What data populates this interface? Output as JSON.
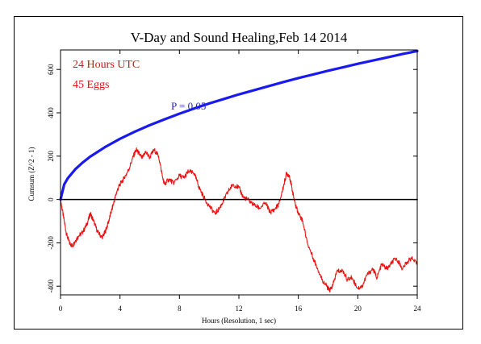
{
  "chart_data": {
    "type": "line",
    "title": "V-Day and Sound Healing,Feb 14 2014",
    "xlabel": "Hours (Resolution, 1 sec)",
    "ylabel": "Cumsum (Z^2 - 1)",
    "annotations": [
      {
        "text": "24 Hours UTC",
        "color": "#dd1111"
      },
      {
        "text": "45 Eggs",
        "color": "#dd1111"
      },
      {
        "text": "P = 0.05",
        "color": "#2222cc"
      }
    ],
    "xlim": [
      0,
      24
    ],
    "ylim": [
      -440,
      690
    ],
    "x_ticks": [
      0,
      4,
      8,
      12,
      16,
      20,
      24
    ],
    "x_tick_labels": [
      "0",
      "4",
      "8",
      "12",
      "16",
      "20",
      "24"
    ],
    "y_ticks": [
      -400,
      -200,
      0,
      200,
      400,
      600
    ],
    "y_tick_labels": [
      "-400",
      "-200",
      "0",
      "200",
      "400",
      "600"
    ],
    "grid": false,
    "series": [
      {
        "role": "probability-envelope",
        "color": "#1a1aee",
        "x": [
          0,
          0.25,
          0.5,
          1,
          1.5,
          2,
          3,
          4,
          5,
          6,
          7,
          8,
          9,
          10,
          11,
          12,
          13,
          14,
          15,
          16,
          17,
          18,
          19,
          20,
          21,
          22,
          23,
          24
        ],
        "values": [
          0,
          70,
          99,
          140,
          171,
          198,
          242,
          280,
          313,
          343,
          370,
          396,
          420,
          443,
          464,
          485,
          504,
          523,
          542,
          560,
          577,
          594,
          610,
          626,
          641,
          656,
          671,
          685
        ]
      },
      {
        "role": "cumulative-deviation",
        "color": "#ee1111",
        "x": [
          0,
          0.2,
          0.4,
          0.6,
          0.8,
          1.0,
          1.2,
          1.5,
          1.8,
          2.0,
          2.2,
          2.5,
          2.8,
          3.0,
          3.2,
          3.4,
          3.6,
          3.8,
          4.0,
          4.3,
          4.6,
          4.9,
          5.1,
          5.3,
          5.5,
          5.7,
          6.0,
          6.3,
          6.6,
          6.9,
          7.0,
          7.3,
          7.6,
          8.0,
          8.3,
          8.6,
          9.0,
          9.3,
          9.6,
          10.0,
          10.4,
          10.7,
          11.0,
          11.3,
          11.6,
          12.0,
          12.3,
          12.6,
          13.0,
          13.4,
          13.8,
          14.1,
          14.4,
          14.7,
          15.0,
          15.2,
          15.4,
          15.6,
          15.8,
          16.0,
          16.3,
          16.6,
          17.0,
          17.3,
          17.6,
          17.9,
          18.1,
          18.3,
          18.6,
          19.0,
          19.3,
          19.6,
          20.0,
          20.3,
          20.6,
          21.0,
          21.3,
          21.6,
          22.0,
          22.3,
          22.6,
          23.0,
          23.3,
          23.6,
          24.0
        ],
        "values": [
          0,
          -80,
          -160,
          -200,
          -215,
          -190,
          -170,
          -150,
          -110,
          -65,
          -95,
          -150,
          -175,
          -150,
          -110,
          -60,
          -10,
          40,
          70,
          100,
          140,
          200,
          230,
          210,
          190,
          220,
          195,
          230,
          200,
          90,
          70,
          95,
          75,
          110,
          100,
          130,
          120,
          60,
          15,
          -30,
          -65,
          -40,
          0,
          40,
          70,
          55,
          10,
          0,
          -25,
          -40,
          -15,
          -60,
          -45,
          -20,
          60,
          120,
          110,
          40,
          -25,
          -60,
          -100,
          -200,
          -270,
          -320,
          -370,
          -400,
          -420,
          -400,
          -330,
          -330,
          -370,
          -360,
          -410,
          -400,
          -350,
          -320,
          -360,
          -300,
          -320,
          -290,
          -270,
          -320,
          -290,
          -270,
          -300
        ]
      },
      {
        "role": "baseline",
        "color": "#000000",
        "x": [
          0,
          24
        ],
        "values": [
          0,
          0
        ]
      }
    ]
  }
}
